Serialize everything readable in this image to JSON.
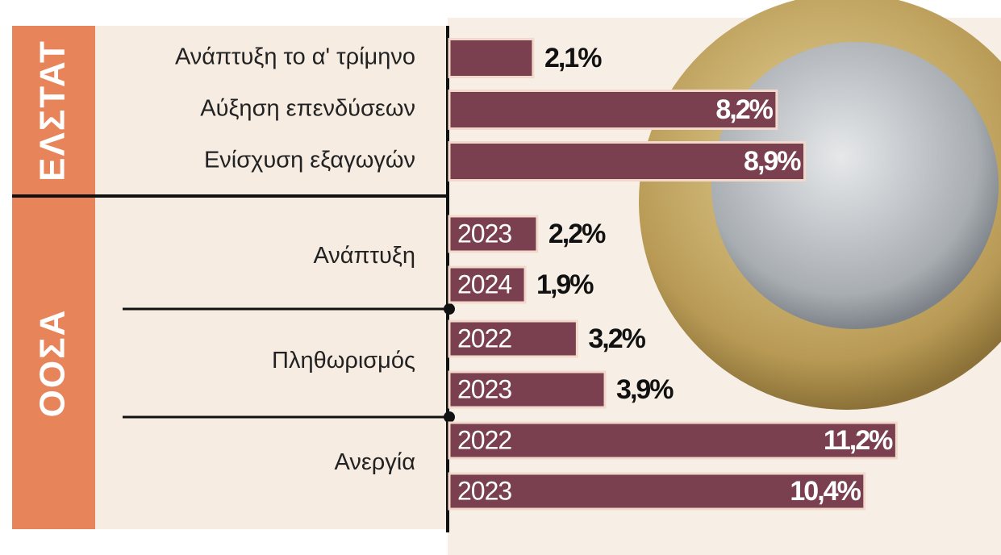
{
  "chart_data": {
    "type": "bar",
    "color": "#7b4050",
    "groups": [
      {
        "name": "ΕΛΣΤΑΤ",
        "categories": [
          "Ανάπτυξη το α' τρίμηνο",
          "Αύξηση επενδύσεων",
          "Ενίσχυση εξαγωγών"
        ],
        "values": [
          2.1,
          8.2,
          8.9
        ],
        "value_labels": [
          "2,1%",
          "8,2%",
          "8,9%"
        ]
      },
      {
        "name": "ΟΟΣΑ",
        "items": [
          {
            "label": "Ανάπτυξη",
            "years": [
              "2023",
              "2024"
            ],
            "values": [
              2.2,
              1.9
            ],
            "value_labels": [
              "2,2%",
              "1,9%"
            ]
          },
          {
            "label": "Πληθωρισμός",
            "years": [
              "2022",
              "2023"
            ],
            "values": [
              3.2,
              3.9
            ],
            "value_labels": [
              "3,2%",
              "3,9%"
            ]
          },
          {
            "label": "Ανεργία",
            "years": [
              "2022",
              "2023"
            ],
            "values": [
              11.2,
              10.4
            ],
            "value_labels": [
              "11,2%",
              "10,4%"
            ]
          }
        ]
      }
    ]
  }
}
